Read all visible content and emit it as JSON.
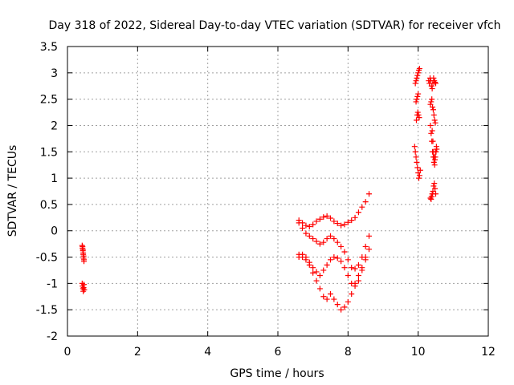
{
  "chart_data": {
    "type": "scatter",
    "title": "Day 318 of 2022, Sidereal Day-to-day VTEC variation (SDTVAR) for receiver vfch",
    "xlabel": "GPS time / hours",
    "ylabel": "SDTVAR / TECUs",
    "xlim": [
      0,
      12
    ],
    "ylim": [
      -2,
      3.5
    ],
    "xticks": [
      0,
      2,
      4,
      6,
      8,
      10,
      12
    ],
    "xtick_labels": [
      "0",
      "2",
      "4",
      "6",
      "8",
      "10",
      "12"
    ],
    "yticks": [
      -2,
      -1.5,
      -1,
      -0.5,
      0,
      0.5,
      1,
      1.5,
      2,
      2.5,
      3,
      3.5
    ],
    "ytick_labels": [
      "-2",
      "-1.5",
      "-1",
      "-0.5",
      "0",
      "0.5",
      "1",
      "1.5",
      "2",
      "2.5",
      "3",
      "3.5"
    ],
    "grid": true,
    "marker": "plus",
    "color": "#ff0000",
    "series": [
      {
        "name": "SDTVAR",
        "x": [
          0.42,
          0.43,
          0.44,
          0.45,
          0.46,
          0.47,
          0.43,
          0.44,
          0.45,
          0.46,
          0.47,
          0.42,
          0.43,
          0.44,
          0.45,
          0.46,
          0.47,
          0.48,
          6.6,
          6.7,
          6.8,
          6.9,
          7.0,
          7.1,
          7.2,
          7.3,
          7.4,
          7.5,
          7.6,
          7.7,
          7.8,
          7.9,
          8.0,
          8.1,
          8.2,
          8.3,
          8.4,
          8.5,
          8.6,
          6.6,
          6.7,
          6.8,
          6.9,
          7.0,
          7.1,
          7.2,
          7.3,
          7.4,
          7.5,
          7.6,
          7.7,
          7.8,
          7.9,
          8.0,
          8.1,
          8.2,
          8.3,
          8.4,
          8.5,
          8.6,
          6.6,
          6.7,
          6.8,
          6.9,
          7.0,
          7.1,
          7.2,
          7.3,
          7.4,
          7.5,
          7.6,
          7.7,
          7.8,
          7.9,
          8.0,
          8.1,
          8.2,
          8.3,
          8.4,
          8.5,
          6.6,
          6.7,
          6.8,
          6.9,
          7.0,
          7.1,
          7.2,
          7.3,
          7.4,
          7.5,
          7.6,
          7.7,
          7.8,
          7.9,
          8.0,
          8.1,
          8.2,
          8.3,
          8.4,
          8.5,
          8.6,
          9.9,
          9.92,
          9.94,
          9.96,
          9.98,
          10.0,
          10.02,
          10.04,
          10.06,
          9.95,
          9.97,
          9.99,
          10.01,
          10.03,
          9.94,
          9.96,
          9.98,
          10.0,
          9.92,
          9.94,
          9.96,
          9.98,
          10.0,
          10.02,
          10.04,
          10.3,
          10.32,
          10.34,
          10.36,
          10.38,
          10.4,
          10.42,
          10.44,
          10.46,
          10.48,
          10.5,
          10.35,
          10.37,
          10.39,
          10.41,
          10.43,
          10.45,
          10.47,
          10.49,
          10.4,
          10.42,
          10.44,
          10.46,
          10.48,
          10.5,
          10.52,
          10.35,
          10.37,
          10.39,
          10.41,
          10.43,
          10.45,
          10.47,
          10.49,
          10.51,
          10.53,
          10.38,
          10.4,
          10.42,
          10.44,
          10.46,
          10.48,
          10.5,
          10.35,
          10.37,
          10.39,
          10.41
        ],
        "y": [
          -0.28,
          -0.33,
          -0.38,
          -0.45,
          -0.52,
          -0.58,
          -0.3,
          -0.36,
          -0.42,
          -0.48,
          -0.55,
          -1.0,
          -1.05,
          -1.1,
          -1.15,
          -1.08,
          -1.02,
          -1.12,
          0.2,
          0.15,
          0.1,
          0.08,
          0.12,
          0.18,
          0.22,
          0.26,
          0.28,
          0.24,
          0.18,
          0.14,
          0.1,
          0.12,
          0.16,
          0.2,
          0.25,
          0.35,
          0.45,
          0.55,
          0.7,
          0.15,
          0.05,
          -0.05,
          -0.1,
          -0.15,
          -0.2,
          -0.25,
          -0.22,
          -0.15,
          -0.1,
          -0.15,
          -0.22,
          -0.3,
          -0.4,
          -0.55,
          -0.7,
          -0.72,
          -0.65,
          -0.5,
          -0.3,
          -0.1,
          -0.5,
          -0.45,
          -0.5,
          -0.6,
          -0.7,
          -0.78,
          -0.85,
          -0.75,
          -0.65,
          -0.55,
          -0.5,
          -0.52,
          -0.58,
          -0.7,
          -0.85,
          -1.0,
          -1.05,
          -0.95,
          -0.75,
          -0.55,
          -0.45,
          -0.5,
          -0.55,
          -0.65,
          -0.8,
          -0.95,
          -1.1,
          -1.25,
          -1.3,
          -1.2,
          -1.3,
          -1.4,
          -1.5,
          -1.45,
          -1.35,
          -1.2,
          -1.0,
          -0.85,
          -0.7,
          -0.5,
          -0.35,
          1.6,
          1.5,
          1.4,
          1.3,
          1.2,
          1.1,
          1.0,
          1.05,
          1.15,
          2.1,
          2.2,
          2.25,
          2.2,
          2.15,
          2.45,
          2.5,
          2.55,
          2.6,
          2.8,
          2.85,
          2.9,
          2.95,
          3.0,
          3.05,
          3.08,
          2.85,
          2.8,
          2.9,
          2.85,
          2.75,
          2.7,
          2.8,
          2.9,
          2.85,
          2.82,
          2.8,
          2.4,
          2.45,
          2.5,
          2.35,
          2.3,
          2.2,
          2.1,
          2.05,
          1.9,
          1.7,
          1.5,
          1.4,
          1.35,
          1.5,
          1.6,
          2.0,
          1.85,
          1.7,
          1.5,
          1.4,
          1.3,
          1.25,
          1.4,
          1.5,
          1.55,
          0.65,
          0.7,
          0.75,
          0.85,
          0.9,
          0.8,
          0.7,
          0.62,
          0.6,
          0.65,
          0.7
        ]
      }
    ]
  }
}
